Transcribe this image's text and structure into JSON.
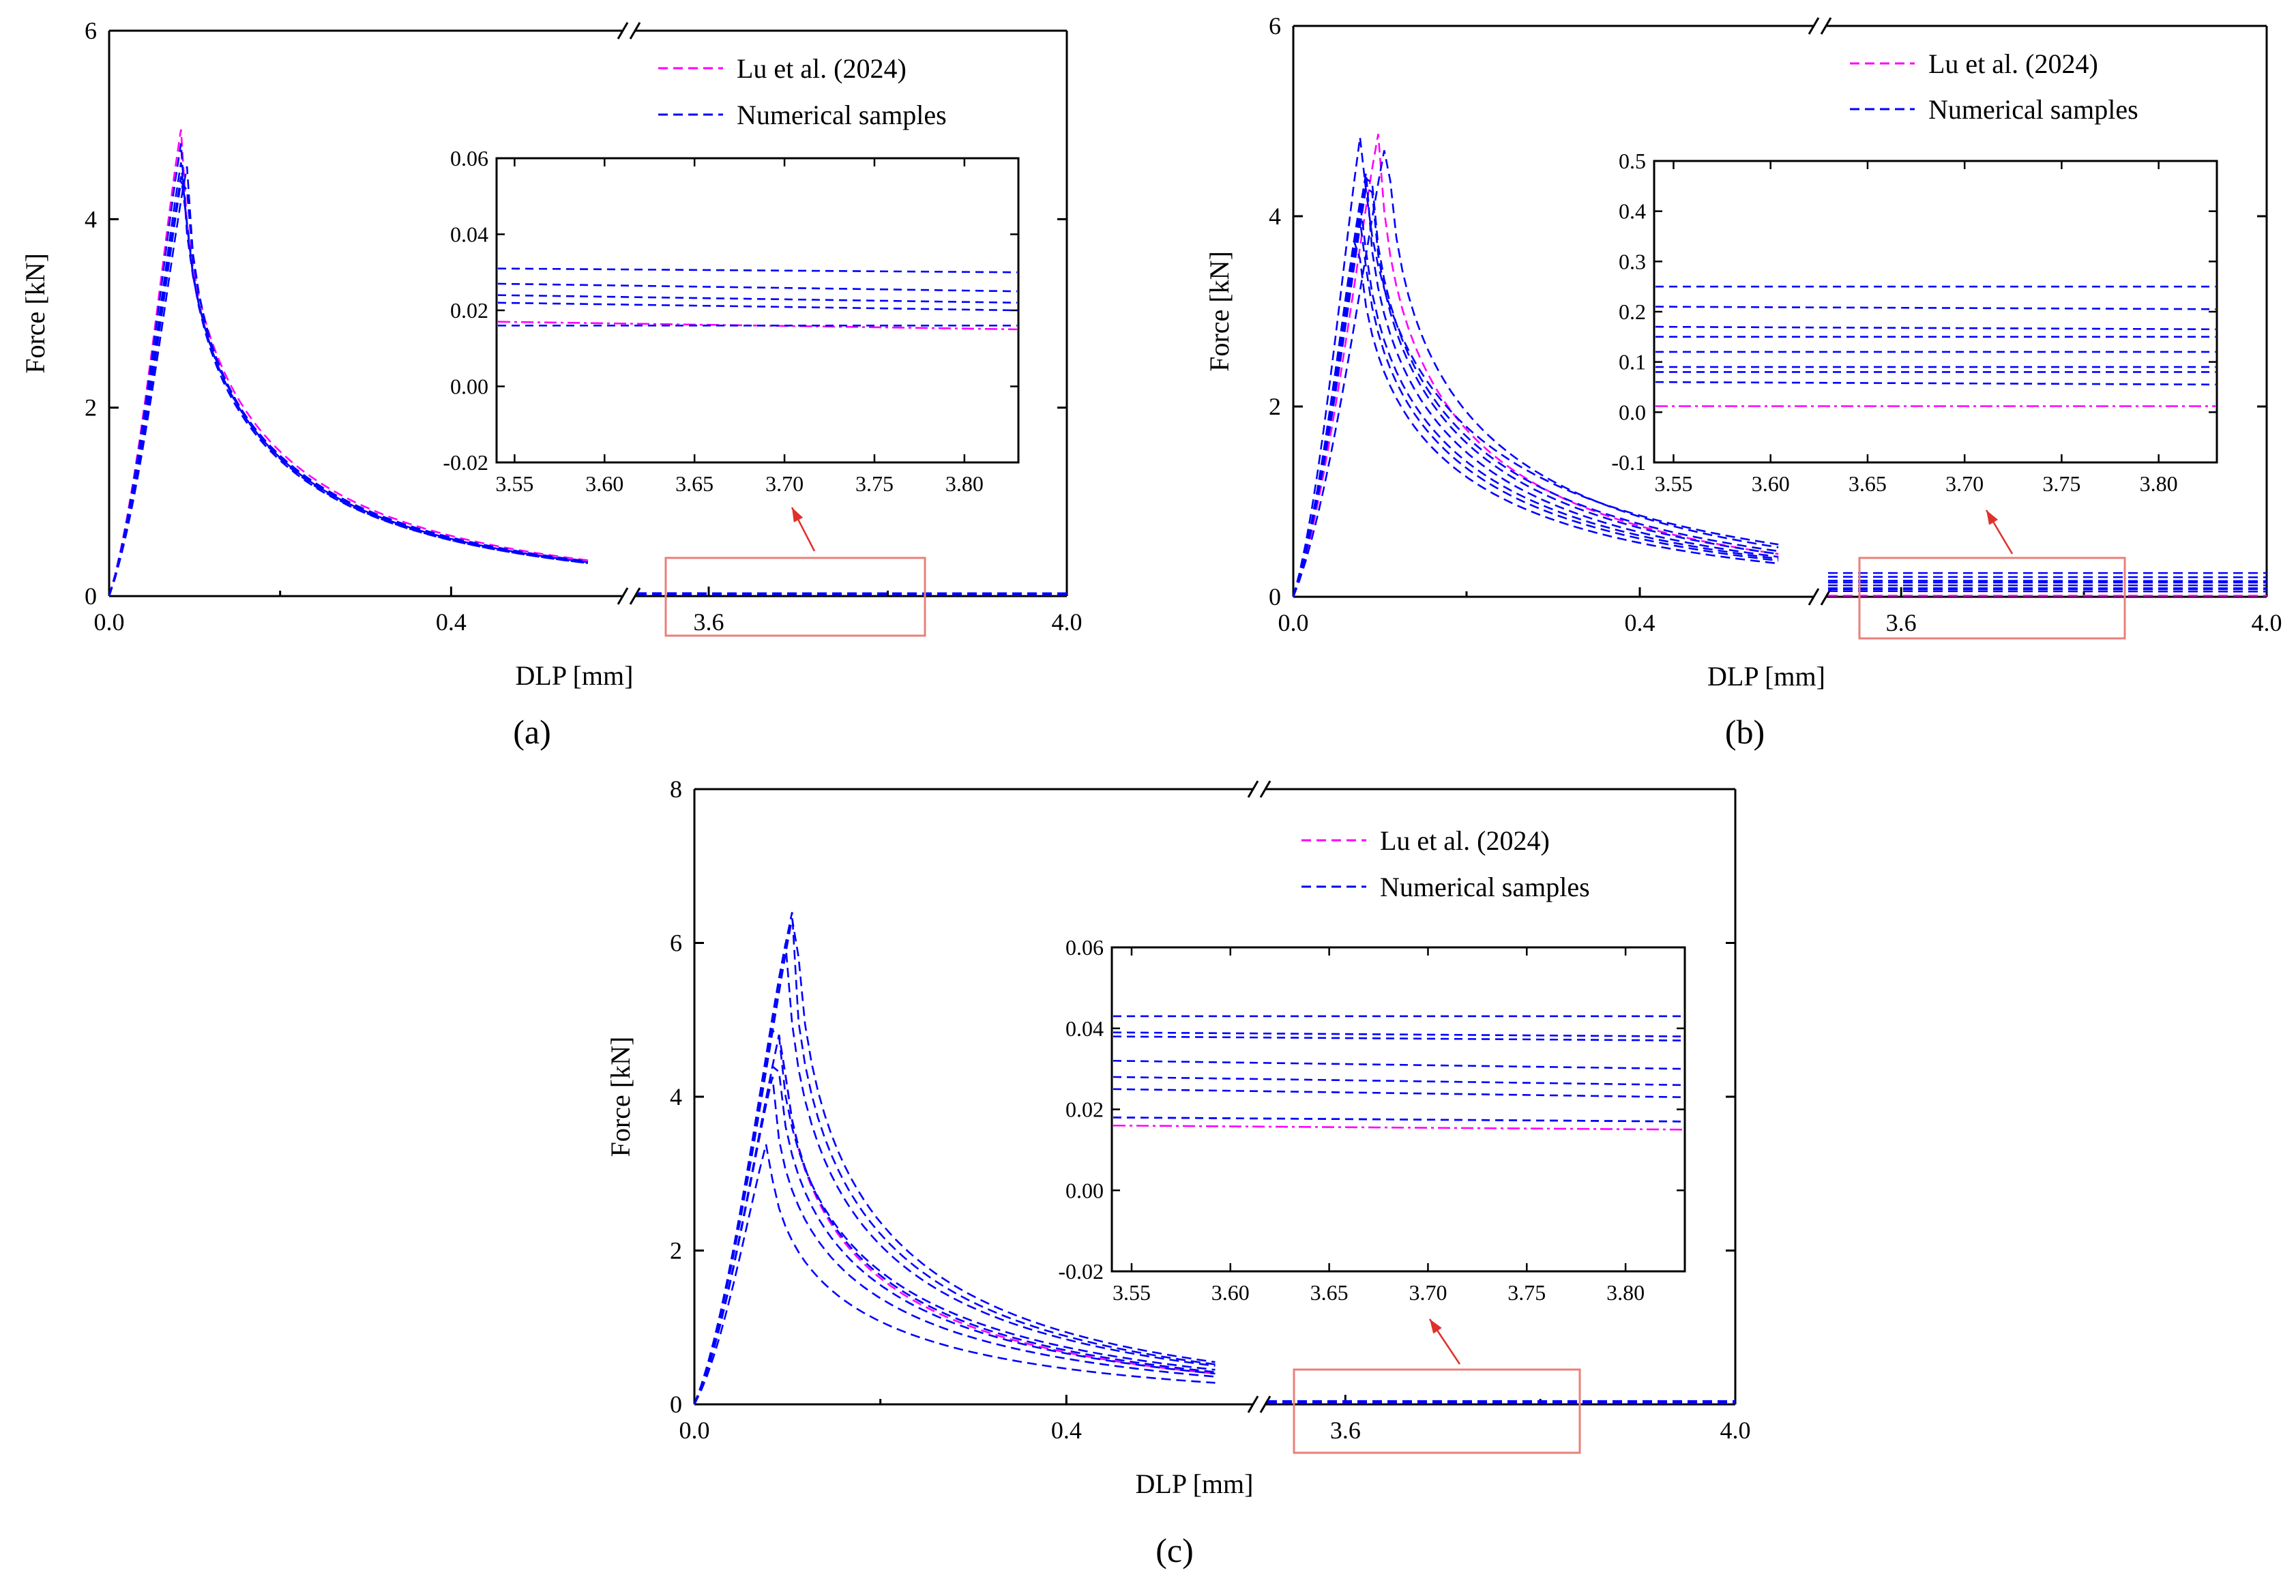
{
  "figure": {
    "panels": [
      {
        "id": "a",
        "caption": "(a)",
        "xlabel": "DLP [mm]",
        "ylabel": "Force [kN]",
        "ylim": [
          0,
          6
        ],
        "yticks": [
          "0",
          "2",
          "4",
          "6"
        ],
        "xticks_left": [
          "0.0",
          "0.4"
        ],
        "xticks_right": [
          "3.6",
          "4.0"
        ],
        "legend": [
          "Lu et al. (2024)",
          "Numerical samples"
        ],
        "inset": {
          "ylim": [
            -0.02,
            0.06
          ],
          "yticks": [
            "-0.02",
            "0.00",
            "0.02",
            "0.04",
            "0.06"
          ],
          "xticks": [
            "3.55",
            "3.60",
            "3.65",
            "3.70",
            "3.75",
            "3.80"
          ]
        }
      },
      {
        "id": "b",
        "caption": "(b)",
        "xlabel": "DLP [mm]",
        "ylabel": "Force [kN]",
        "ylim": [
          0,
          6
        ],
        "yticks": [
          "0",
          "2",
          "4",
          "6"
        ],
        "xticks_left": [
          "0.0",
          "0.4"
        ],
        "xticks_right": [
          "3.6",
          "4.0"
        ],
        "legend": [
          "Lu et al. (2024)",
          "Numerical samples"
        ],
        "inset": {
          "ylim": [
            -0.1,
            0.5
          ],
          "yticks": [
            "-0.1",
            "0.0",
            "0.1",
            "0.2",
            "0.3",
            "0.4",
            "0.5"
          ],
          "xticks": [
            "3.55",
            "3.60",
            "3.65",
            "3.70",
            "3.75",
            "3.80"
          ]
        }
      },
      {
        "id": "c",
        "caption": "(c)",
        "xlabel": "DLP [mm]",
        "ylabel": "Force [kN]",
        "ylim": [
          0,
          8
        ],
        "yticks": [
          "0",
          "2",
          "4",
          "6",
          "8"
        ],
        "xticks_left": [
          "0.0",
          "0.4"
        ],
        "xticks_right": [
          "3.6",
          "4.0"
        ],
        "legend": [
          "Lu et al. (2024)",
          "Numerical samples"
        ],
        "inset": {
          "ylim": [
            -0.02,
            0.06
          ],
          "yticks": [
            "-0.02",
            "0.00",
            "0.02",
            "0.04",
            "0.06"
          ],
          "xticks": [
            "3.55",
            "3.60",
            "3.65",
            "3.70",
            "3.75",
            "3.80"
          ]
        }
      }
    ]
  },
  "colors": {
    "reference": "#ff00ff",
    "samples": "#0000ff",
    "highlight": "#e8807a",
    "axis": "#000000"
  },
  "chart_data": [
    {
      "type": "line",
      "title": "(a)",
      "xlabel": "DLP [mm]",
      "ylabel": "Force [kN]",
      "x_segments": [
        [
          0.0,
          0.56
        ],
        [
          3.52,
          4.0
        ]
      ],
      "ylim": [
        0,
        6
      ],
      "series": [
        {
          "name": "Lu et al. (2024)",
          "peak_x": 0.085,
          "peak_y": 5.0,
          "tail_end_y": 0.38,
          "residual": [
            0.017,
            0.015
          ]
        },
        {
          "name": "Numerical samples",
          "peak_x": 0.085,
          "peak_y": 4.85,
          "tail_end_y": 0.37,
          "residual": [
            0.031,
            0.03
          ]
        },
        {
          "name": "Numerical samples",
          "peak_x": 0.087,
          "peak_y": 4.75,
          "tail_end_y": 0.36,
          "residual": [
            0.027,
            0.025
          ]
        },
        {
          "name": "Numerical samples",
          "peak_x": 0.09,
          "peak_y": 4.7,
          "tail_end_y": 0.36,
          "residual": [
            0.024,
            0.022
          ]
        },
        {
          "name": "Numerical samples",
          "peak_x": 0.092,
          "peak_y": 4.6,
          "tail_end_y": 0.35,
          "residual": [
            0.022,
            0.02
          ]
        },
        {
          "name": "Numerical samples",
          "peak_x": 0.088,
          "peak_y": 4.65,
          "tail_end_y": 0.35,
          "residual": [
            0.016,
            0.016
          ]
        }
      ],
      "inset": {
        "xlim": [
          3.54,
          3.83
        ],
        "ylim": [
          -0.02,
          0.06
        ]
      }
    },
    {
      "type": "line",
      "title": "(b)",
      "xlabel": "DLP [mm]",
      "ylabel": "Force [kN]",
      "x_segments": [
        [
          0.0,
          0.56
        ],
        [
          3.52,
          4.0
        ]
      ],
      "ylim": [
        0,
        6
      ],
      "series": [
        {
          "name": "Lu et al. (2024)",
          "peak_x": 0.1,
          "peak_y": 4.95,
          "tail_end_y": 0.45,
          "residual": [
            0.012,
            0.012
          ]
        },
        {
          "name": "Numerical samples",
          "peak_x": 0.08,
          "peak_y": 5.0,
          "tail_end_y": 0.55,
          "residual": [
            0.25,
            0.25
          ]
        },
        {
          "name": "Numerical samples",
          "peak_x": 0.11,
          "peak_y": 4.9,
          "tail_end_y": 0.52,
          "residual": [
            0.21,
            0.205
          ]
        },
        {
          "name": "Numerical samples",
          "peak_x": 0.09,
          "peak_y": 4.7,
          "tail_end_y": 0.48,
          "residual": [
            0.17,
            0.165
          ]
        },
        {
          "name": "Numerical samples",
          "peak_x": 0.09,
          "peak_y": 4.6,
          "tail_end_y": 0.45,
          "residual": [
            0.15,
            0.15
          ]
        },
        {
          "name": "Numerical samples",
          "peak_x": 0.085,
          "peak_y": 4.5,
          "tail_end_y": 0.42,
          "residual": [
            0.12,
            0.12
          ]
        },
        {
          "name": "Numerical samples",
          "peak_x": 0.08,
          "peak_y": 4.3,
          "tail_end_y": 0.4,
          "residual": [
            0.09,
            0.09
          ]
        },
        {
          "name": "Numerical samples",
          "peak_x": 0.08,
          "peak_y": 4.1,
          "tail_end_y": 0.38,
          "residual": [
            0.08,
            0.08
          ]
        },
        {
          "name": "Numerical samples",
          "peak_x": 0.075,
          "peak_y": 4.0,
          "tail_end_y": 0.35,
          "residual": [
            0.06,
            0.055
          ]
        }
      ],
      "inset": {
        "xlim": [
          3.54,
          3.83
        ],
        "ylim": [
          -0.1,
          0.5
        ]
      }
    },
    {
      "type": "line",
      "title": "(c)",
      "xlabel": "DLP [mm]",
      "ylabel": "Force [kN]",
      "x_segments": [
        [
          0.0,
          0.56
        ],
        [
          3.52,
          4.0
        ]
      ],
      "ylim": [
        0,
        8
      ],
      "series": [
        {
          "name": "Lu et al. (2024)",
          "peak_x": 0.095,
          "peak_y": 5.0,
          "tail_end_y": 0.4,
          "residual": [
            0.016,
            0.015
          ]
        },
        {
          "name": "Numerical samples",
          "peak_x": 0.11,
          "peak_y": 6.6,
          "tail_end_y": 0.55,
          "residual": [
            0.043,
            0.043
          ]
        },
        {
          "name": "Numerical samples",
          "peak_x": 0.105,
          "peak_y": 6.4,
          "tail_end_y": 0.52,
          "residual": [
            0.039,
            0.038
          ]
        },
        {
          "name": "Numerical samples",
          "peak_x": 0.1,
          "peak_y": 6.1,
          "tail_end_y": 0.5,
          "residual": [
            0.038,
            0.037
          ]
        },
        {
          "name": "Numerical samples",
          "peak_x": 0.09,
          "peak_y": 5.2,
          "tail_end_y": 0.45,
          "residual": [
            0.032,
            0.03
          ]
        },
        {
          "name": "Numerical samples",
          "peak_x": 0.095,
          "peak_y": 5.0,
          "tail_end_y": 0.42,
          "residual": [
            0.028,
            0.026
          ]
        },
        {
          "name": "Numerical samples",
          "peak_x": 0.09,
          "peak_y": 4.7,
          "tail_end_y": 0.4,
          "residual": [
            0.025,
            0.023
          ]
        },
        {
          "name": "Numerical samples",
          "peak_x": 0.085,
          "peak_y": 4.3,
          "tail_end_y": 0.36,
          "residual": [
            0.018,
            0.017
          ]
        },
        {
          "name": "Numerical samples",
          "peak_x": 0.08,
          "peak_y": 3.5,
          "tail_end_y": 0.28,
          "residual": [
            0.018,
            0.017
          ]
        }
      ],
      "inset": {
        "xlim": [
          3.54,
          3.83
        ],
        "ylim": [
          -0.02,
          0.06
        ]
      }
    }
  ]
}
